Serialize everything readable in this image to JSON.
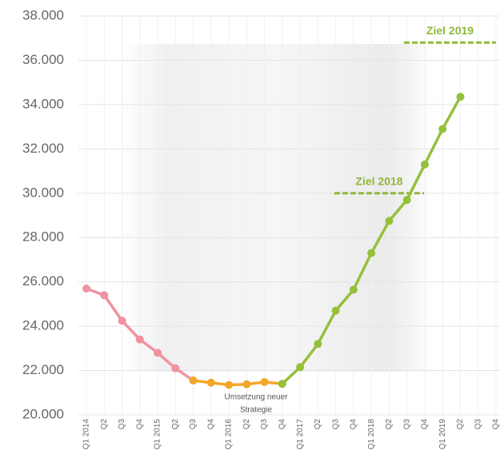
{
  "chart_data": {
    "type": "line",
    "categories": [
      "Q1 2014",
      "Q2",
      "Q3",
      "Q4",
      "Q1 2015",
      "Q2",
      "Q3",
      "Q4",
      "Q1 2016",
      "Q2",
      "Q3",
      "Q4",
      "Q1 2017",
      "Q2",
      "Q3",
      "Q4",
      "Q1 2018",
      "Q2",
      "Q3",
      "Q4",
      "Q1 2019",
      "Q2",
      "Q3",
      "Q4"
    ],
    "series": [
      {
        "color": "#f0929f",
        "values": [
          25700,
          25400,
          24250,
          23400,
          22800,
          22100,
          21550,
          null,
          null,
          null,
          null,
          null,
          null,
          null,
          null,
          null,
          null,
          null,
          null,
          null,
          null,
          null,
          null,
          null
        ]
      },
      {
        "color": "#f3a629",
        "values": [
          null,
          null,
          null,
          null,
          null,
          null,
          21550,
          21450,
          21350,
          21380,
          21480,
          21400,
          null,
          null,
          null,
          null,
          null,
          null,
          null,
          null,
          null,
          null,
          null,
          null
        ]
      },
      {
        "color": "#95c03b",
        "values": [
          null,
          null,
          null,
          null,
          null,
          null,
          null,
          null,
          null,
          null,
          null,
          21400,
          22150,
          23200,
          24700,
          25650,
          27300,
          28750,
          29700,
          31300,
          32900,
          34350,
          null,
          null
        ]
      }
    ],
    "targets": [
      {
        "label": "Ziel 2018",
        "value": 30000,
        "color": "#8fb83a"
      },
      {
        "label": "Ziel 2019",
        "value": 36800,
        "color": "#8fb83a"
      }
    ],
    "annotation": [
      "Umsetzung neuer",
      "Strategie"
    ],
    "ylim": [
      20000,
      38000
    ],
    "yticks": [
      {
        "value": 20000,
        "label": "20.000"
      },
      {
        "value": 22000,
        "label": "22.000"
      },
      {
        "value": 24000,
        "label": "24.000"
      },
      {
        "value": 26000,
        "label": "26.000"
      },
      {
        "value": 28000,
        "label": "28.000"
      },
      {
        "value": 30000,
        "label": "30.000"
      },
      {
        "value": 32000,
        "label": "32.000"
      },
      {
        "value": 34000,
        "label": "34.000"
      },
      {
        "value": 36000,
        "label": "36.000"
      },
      {
        "value": 38000,
        "label": "38.000"
      }
    ],
    "grid": true
  }
}
